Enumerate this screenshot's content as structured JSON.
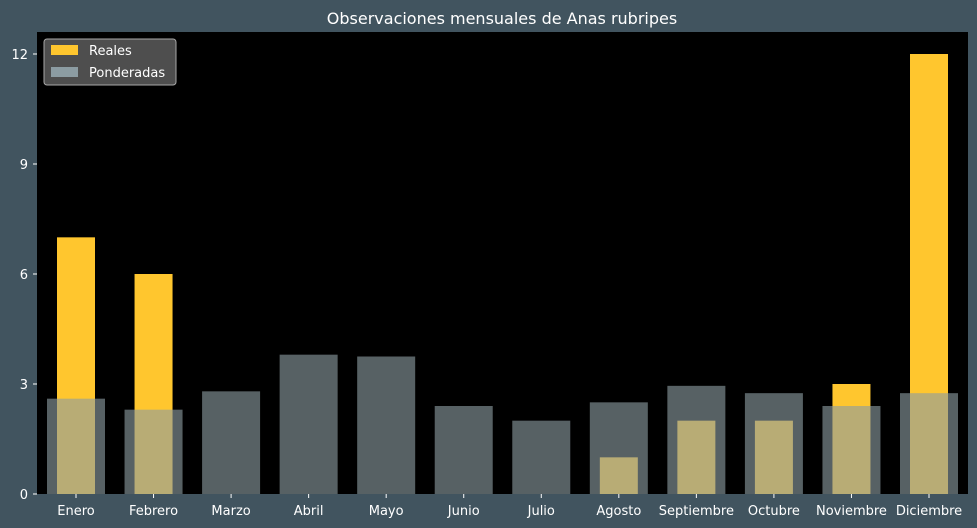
{
  "chart_data": {
    "type": "bar",
    "title": "Observaciones mensuales de Anas rubripes",
    "xlabel": "",
    "ylabel": "",
    "categories": [
      "Enero",
      "Febrero",
      "Marzo",
      "Abril",
      "Mayo",
      "Junio",
      "Julio",
      "Agosto",
      "Septiembre",
      "Octubre",
      "Noviembre",
      "Diciembre"
    ],
    "series": [
      {
        "name": "Reales",
        "color": "#ffc62e",
        "values": [
          7,
          6,
          0,
          0,
          0,
          0,
          0,
          1,
          2,
          2,
          3,
          12
        ]
      },
      {
        "name": "Ponderadas",
        "color": "#8c9ca2",
        "values": [
          2.6,
          2.3,
          2.8,
          3.8,
          3.75,
          2.4,
          2.0,
          2.5,
          2.95,
          2.75,
          2.4,
          2.75
        ]
      }
    ],
    "ylim": [
      0,
      12.6
    ],
    "yticks": [
      0,
      3,
      6,
      9,
      12
    ],
    "legend_position": "top-left",
    "plot_background": "#000000",
    "figure_background": "#41545f",
    "grid": false
  }
}
